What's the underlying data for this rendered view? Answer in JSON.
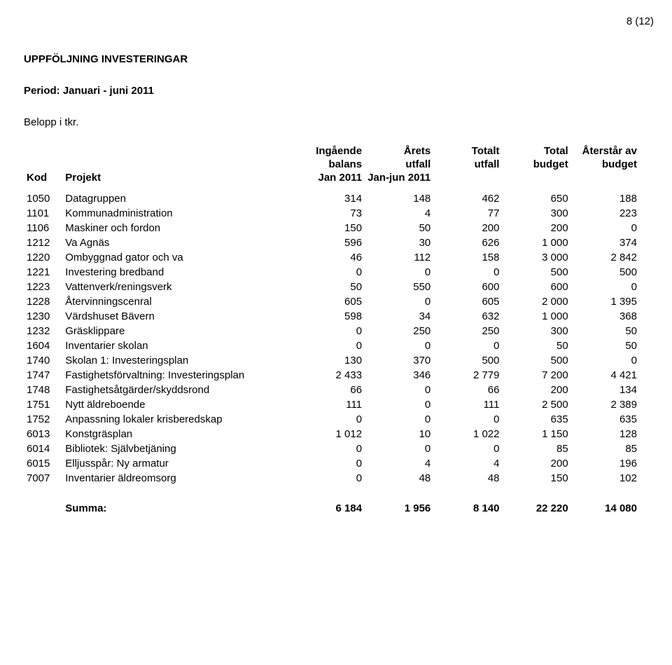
{
  "page_number": "8 (12)",
  "section_title": "UPPFÖLJNING INVESTERINGAR",
  "period_line": "Period: Januari - juni 2011",
  "belopp_line": "Belopp i tkr.",
  "headers": {
    "kod": "Kod",
    "projekt": "Projekt",
    "col1_l1": "Ingående",
    "col1_l2": "balans",
    "col1_l3": "Jan 2011",
    "col2_l1": "Årets",
    "col2_l2": "utfall",
    "col2_l3": "Jan-jun 2011",
    "col3_l1": "Totalt",
    "col3_l2": "utfall",
    "col3_l3": "",
    "col4_l1": "Total",
    "col4_l2": "budget",
    "col4_l3": "",
    "col5_l1": "Återstår av",
    "col5_l2": "budget",
    "col5_l3": ""
  },
  "rows": [
    {
      "kod": "1050",
      "proj": "Datagruppen",
      "c1": "314",
      "c2": "148",
      "c3": "462",
      "c4": "650",
      "c5": "188"
    },
    {
      "kod": "1101",
      "proj": "Kommunadministration",
      "c1": "73",
      "c2": "4",
      "c3": "77",
      "c4": "300",
      "c5": "223"
    },
    {
      "kod": "1106",
      "proj": "Maskiner och fordon",
      "c1": "150",
      "c2": "50",
      "c3": "200",
      "c4": "200",
      "c5": "0"
    },
    {
      "kod": "1212",
      "proj": "Va Agnäs",
      "c1": "596",
      "c2": "30",
      "c3": "626",
      "c4": "1 000",
      "c5": "374"
    },
    {
      "kod": "1220",
      "proj": "Ombyggnad gator och va",
      "c1": "46",
      "c2": "112",
      "c3": "158",
      "c4": "3 000",
      "c5": "2 842"
    },
    {
      "kod": "1221",
      "proj": "Investering bredband",
      "c1": "0",
      "c2": "0",
      "c3": "0",
      "c4": "500",
      "c5": "500"
    },
    {
      "kod": "1223",
      "proj": "Vattenverk/reningsverk",
      "c1": "50",
      "c2": "550",
      "c3": "600",
      "c4": "600",
      "c5": "0"
    },
    {
      "kod": "1228",
      "proj": "Återvinningscenral",
      "c1": "605",
      "c2": "0",
      "c3": "605",
      "c4": "2 000",
      "c5": "1 395"
    },
    {
      "kod": "1230",
      "proj": "Värdshuset Bävern",
      "c1": "598",
      "c2": "34",
      "c3": "632",
      "c4": "1 000",
      "c5": "368"
    },
    {
      "kod": "1232",
      "proj": "Gräsklippare",
      "c1": "0",
      "c2": "250",
      "c3": "250",
      "c4": "300",
      "c5": "50"
    },
    {
      "kod": "1604",
      "proj": "Inventarier skolan",
      "c1": "0",
      "c2": "0",
      "c3": "0",
      "c4": "50",
      "c5": "50"
    },
    {
      "kod": "1740",
      "proj": "Skolan 1: Investeringsplan",
      "c1": "130",
      "c2": "370",
      "c3": "500",
      "c4": "500",
      "c5": "0"
    },
    {
      "kod": "1747",
      "proj": "Fastighetsförvaltning: Investeringsplan",
      "c1": "2 433",
      "c2": "346",
      "c3": "2 779",
      "c4": "7 200",
      "c5": "4 421"
    },
    {
      "kod": "1748",
      "proj": "Fastighetsåtgärder/skyddsrond",
      "c1": "66",
      "c2": "0",
      "c3": "66",
      "c4": "200",
      "c5": "134"
    },
    {
      "kod": "1751",
      "proj": "Nytt äldreboende",
      "c1": "111",
      "c2": "0",
      "c3": "111",
      "c4": "2 500",
      "c5": "2 389"
    },
    {
      "kod": "1752",
      "proj": "Anpassning lokaler krisberedskap",
      "c1": "0",
      "c2": "0",
      "c3": "0",
      "c4": "635",
      "c5": "635"
    },
    {
      "kod": "6013",
      "proj": "Konstgräsplan",
      "c1": "1 012",
      "c2": "10",
      "c3": "1 022",
      "c4": "1 150",
      "c5": "128"
    },
    {
      "kod": "6014",
      "proj": "Bibliotek: Självbetjäning",
      "c1": "0",
      "c2": "0",
      "c3": "0",
      "c4": "85",
      "c5": "85"
    },
    {
      "kod": "6015",
      "proj": "Elljusspår: Ny armatur",
      "c1": "0",
      "c2": "4",
      "c3": "4",
      "c4": "200",
      "c5": "196"
    },
    {
      "kod": "7007",
      "proj": "Inventarier äldreomsorg",
      "c1": "0",
      "c2": "48",
      "c3": "48",
      "c4": "150",
      "c5": "102"
    }
  ],
  "sum": {
    "label": "Summa:",
    "c1": "6 184",
    "c2": "1 956",
    "c3": "8 140",
    "c4": "22 220",
    "c5": "14 080"
  }
}
